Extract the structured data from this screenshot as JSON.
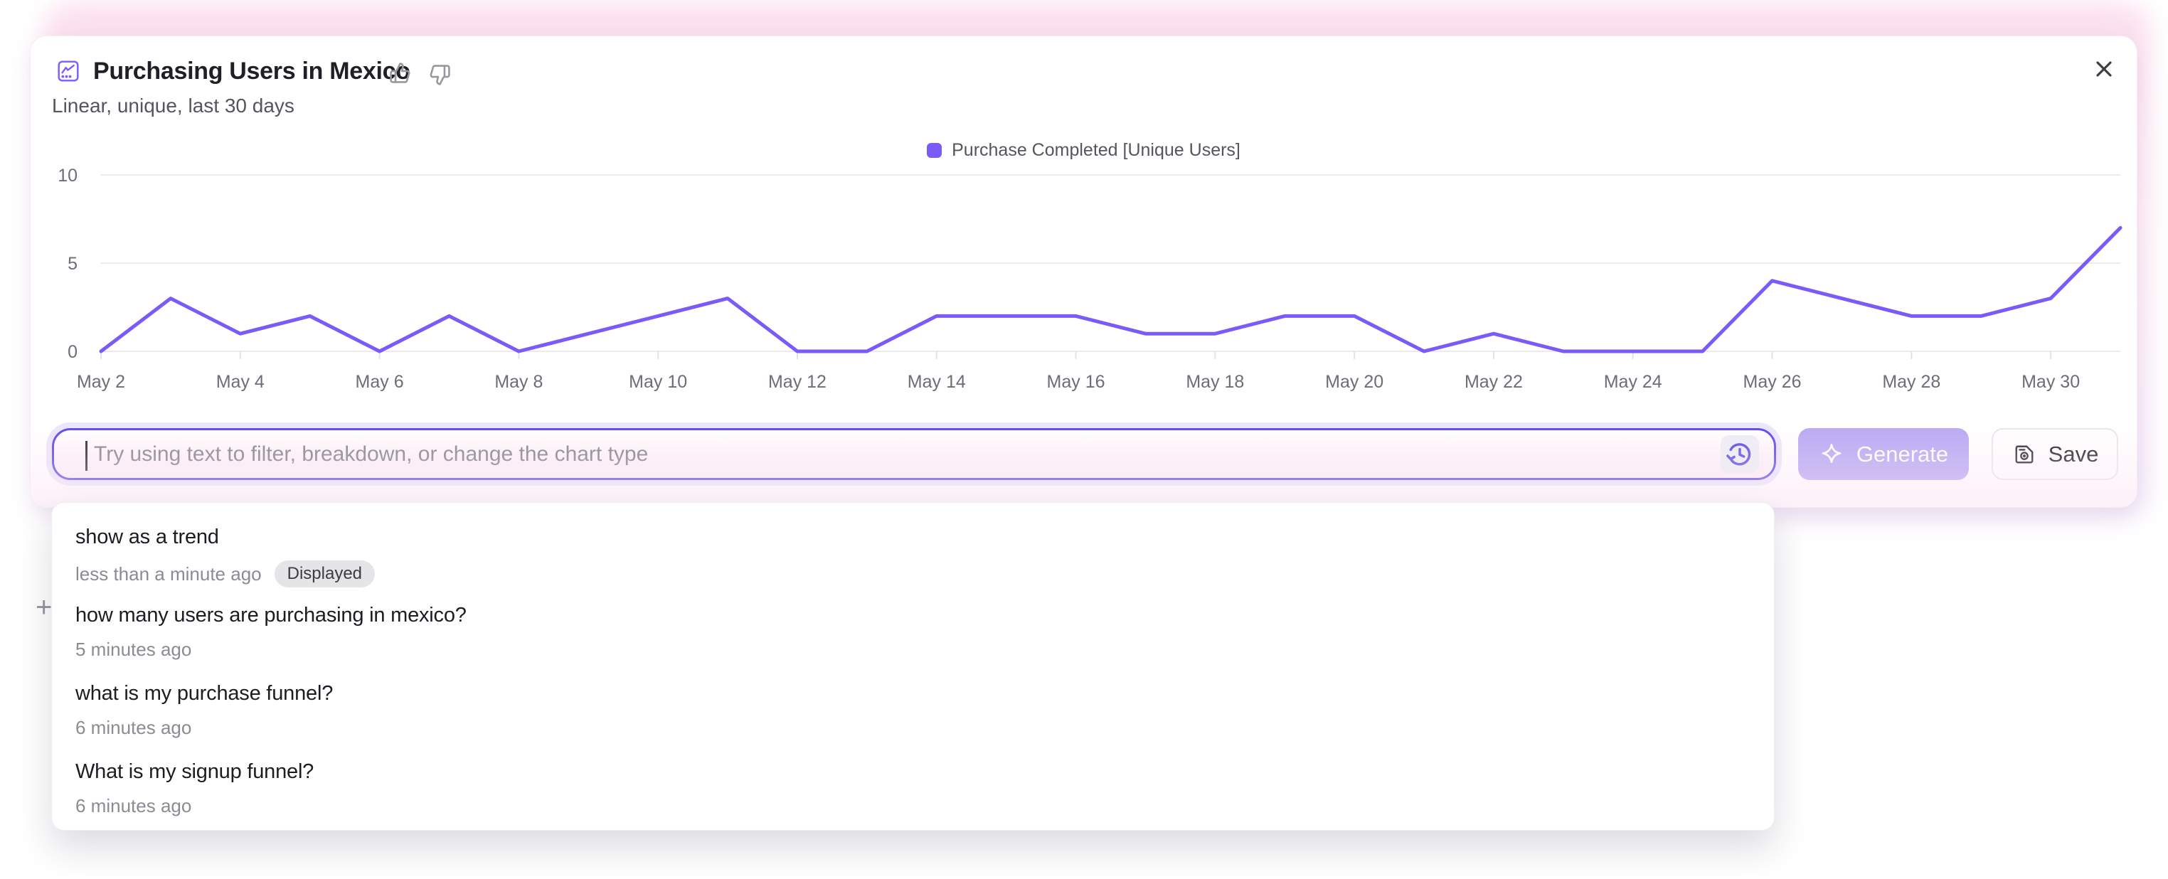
{
  "header": {
    "title": "Purchasing Users in Mexico",
    "subtitle": "Linear, unique, last 30 days"
  },
  "chart_data": {
    "type": "line",
    "title": "Purchasing Users in Mexico",
    "x": [
      "May 2",
      "May 3",
      "May 4",
      "May 5",
      "May 6",
      "May 7",
      "May 8",
      "May 9",
      "May 10",
      "May 11",
      "May 12",
      "May 13",
      "May 14",
      "May 15",
      "May 16",
      "May 17",
      "May 18",
      "May 19",
      "May 20",
      "May 21",
      "May 22",
      "May 23",
      "May 24",
      "May 25",
      "May 26",
      "May 27",
      "May 28",
      "May 29",
      "May 30",
      "May 31"
    ],
    "series": [
      {
        "name": "Purchase Completed [Unique Users]",
        "color": "#7a5af8",
        "values": [
          0,
          3,
          1,
          2,
          0,
          2,
          0,
          1,
          2,
          3,
          0,
          0,
          2,
          2,
          2,
          1,
          1,
          2,
          2,
          0,
          1,
          0,
          0,
          0,
          4,
          3,
          2,
          2,
          3,
          7
        ]
      }
    ],
    "x_tick_every": 2,
    "y_ticks": [
      0,
      5,
      10
    ],
    "ylim": [
      0,
      10
    ],
    "grid": "horizontal",
    "legend_position": "top-center"
  },
  "prompt_bar": {
    "value": "",
    "placeholder": "Try using text to filter, breakdown, or change the chart type",
    "generate_label": "Generate",
    "save_label": "Save"
  },
  "history_dropdown": {
    "items": [
      {
        "query": "show as a trend",
        "time": "less than a minute ago",
        "badge": "Displayed"
      },
      {
        "query": "how many users are purchasing in mexico?",
        "time": "5 minutes ago",
        "badge": ""
      },
      {
        "query": "what is my purchase funnel?",
        "time": "6 minutes ago",
        "badge": ""
      },
      {
        "query": "What is my signup funnel?",
        "time": "6 minutes ago",
        "badge": ""
      }
    ]
  },
  "icons": {
    "chart": "line-chart-in-square",
    "thumbs_up": "thumbs-up-outline",
    "thumbs_down": "thumbs-down-outline",
    "close": "x",
    "history": "clock-with-undo-arrow",
    "sparkle": "four-point-star",
    "save": "floppy-disk",
    "plus": "+",
    "caret": "text-caret"
  },
  "colors": {
    "accent": "#7a5af8",
    "input_border": "#5b48e8",
    "generate_bg": "#b8a9f3",
    "halo_pink": "#fbdfee",
    "grid_line": "#ebebee",
    "axis_text": "#6d6d75"
  }
}
